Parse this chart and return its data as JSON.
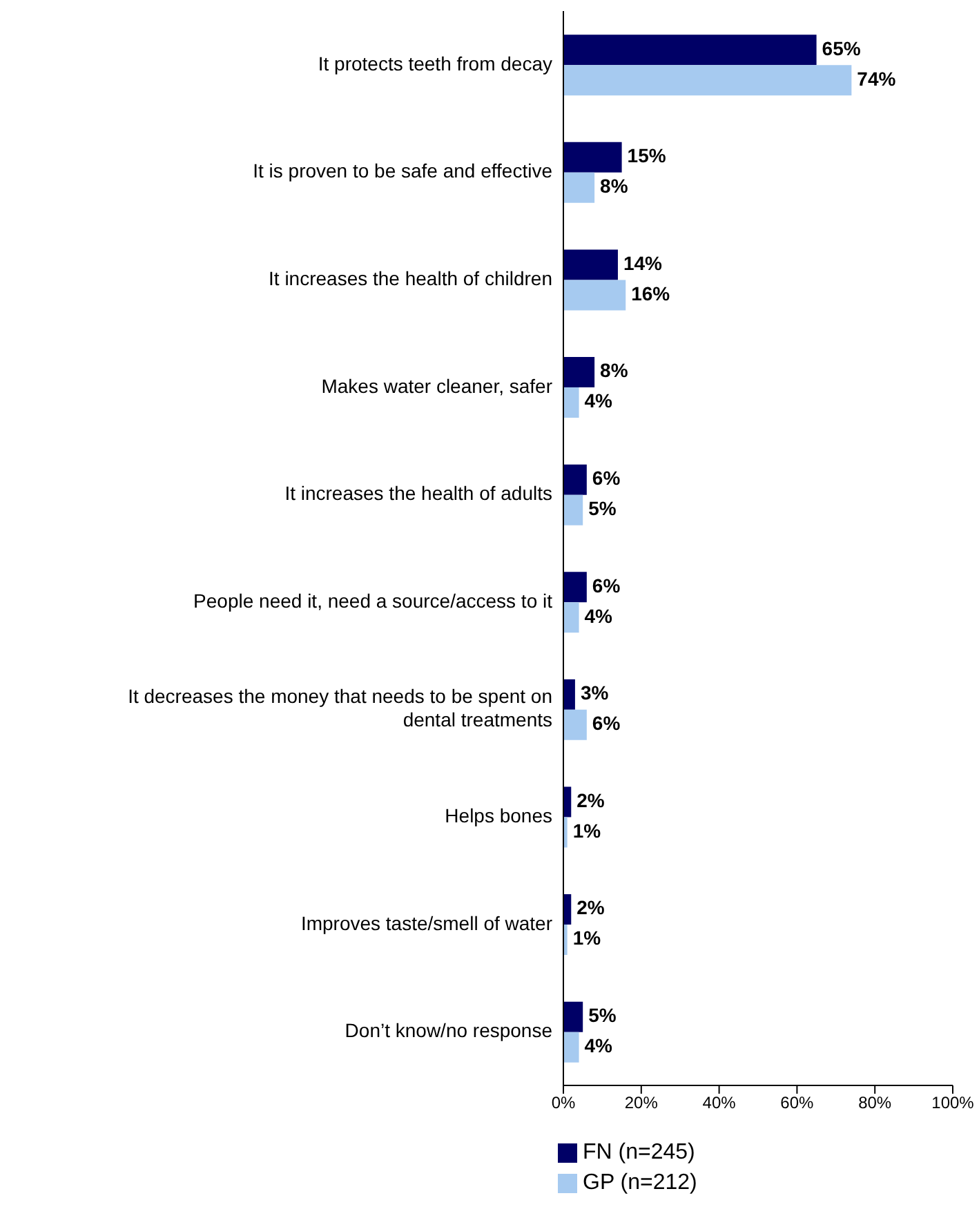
{
  "chart_data": {
    "type": "bar",
    "orientation": "horizontal",
    "categories": [
      "It protects teeth from decay",
      "It is proven to be safe and effective",
      "It increases the health of children",
      "Makes water cleaner, safer",
      "It increases the health of adults",
      "People need it, need a source/access to it",
      "It decreases the money that needs to be spent on dental treatments",
      "Helps bones",
      "Improves taste/smell of water",
      "Don’t know/no response"
    ],
    "series": [
      {
        "name": "FN (n=245)",
        "color": "#000066",
        "values": [
          65,
          15,
          14,
          8,
          6,
          6,
          3,
          2,
          2,
          5
        ],
        "value_labels": [
          "65%",
          "15%",
          "14%",
          "8%",
          "6%",
          "6%",
          "3%",
          "2%",
          "2%",
          "5%"
        ]
      },
      {
        "name": "GP (n=212)",
        "color": "#a6caf0",
        "values": [
          74,
          8,
          16,
          4,
          5,
          4,
          6,
          1,
          1,
          4
        ],
        "value_labels": [
          "74%",
          "8%",
          "16%",
          "4%",
          "5%",
          "4%",
          "6%",
          "1%",
          "1%",
          "4%"
        ]
      }
    ],
    "xlim": [
      0,
      100
    ],
    "xticks": [
      {
        "value": 0,
        "label": "0%"
      },
      {
        "value": 20,
        "label": "20%"
      },
      {
        "value": 40,
        "label": "40%"
      },
      {
        "value": 60,
        "label": "60%"
      },
      {
        "value": 80,
        "label": "80%"
      },
      {
        "value": 100,
        "label": "100%"
      }
    ],
    "legend": "bottom",
    "grid": false
  }
}
